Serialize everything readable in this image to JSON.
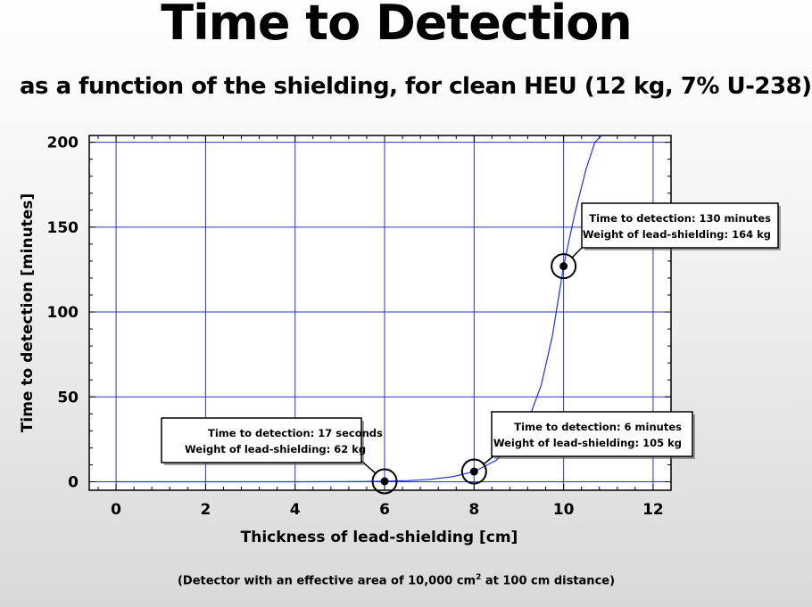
{
  "title": "Time to Detection",
  "subtitle": "as a function of the shielding, for clean HEU (12 kg, 7% U-238)",
  "footnote": {
    "before": "(Detector with an effective area of 10,000 cm",
    "sup": "2",
    "after": " at 100 cm distance)"
  },
  "chart_data": {
    "type": "line",
    "xlabel": "Thickness of lead-shielding [cm]",
    "ylabel": "Time to detection [minutes]",
    "xlim": [
      -0.6,
      12.4
    ],
    "ylim": [
      -5,
      204
    ],
    "xticks": [
      0,
      2,
      4,
      6,
      8,
      10,
      12
    ],
    "yticks": [
      0,
      50,
      100,
      150,
      200
    ],
    "grid": true,
    "line_color": "#2233dd",
    "grid_color": "#2a35c4",
    "series": [
      {
        "x": [
          0,
          1,
          2,
          3,
          4,
          5,
          5.5,
          6,
          6.5,
          7,
          7.5,
          8,
          8.5,
          9,
          9.25,
          9.5,
          9.75,
          10,
          10.25,
          10.5,
          10.7,
          10.85
        ],
        "y": [
          0,
          0,
          0,
          0,
          0.01,
          0.05,
          0.12,
          0.28,
          0.6,
          1.4,
          2.9,
          6,
          12.7,
          26.8,
          39,
          57,
          86,
          127,
          158,
          184,
          200,
          204
        ]
      }
    ],
    "points": [
      {
        "x": 6,
        "y": 0.28
      },
      {
        "x": 8,
        "y": 6
      },
      {
        "x": 10,
        "y": 127
      }
    ],
    "annotations": [
      {
        "line1": "Time to detection: 17 seconds",
        "line2": "Weight of lead-shielding: 62 kg"
      },
      {
        "line1": "Time to detection: 6 minutes",
        "line2": "Weight of lead-shielding: 105 kg"
      },
      {
        "line1": "Time to detection: 130 minutes",
        "line2": "Weight of lead-shielding: 164 kg"
      }
    ]
  }
}
